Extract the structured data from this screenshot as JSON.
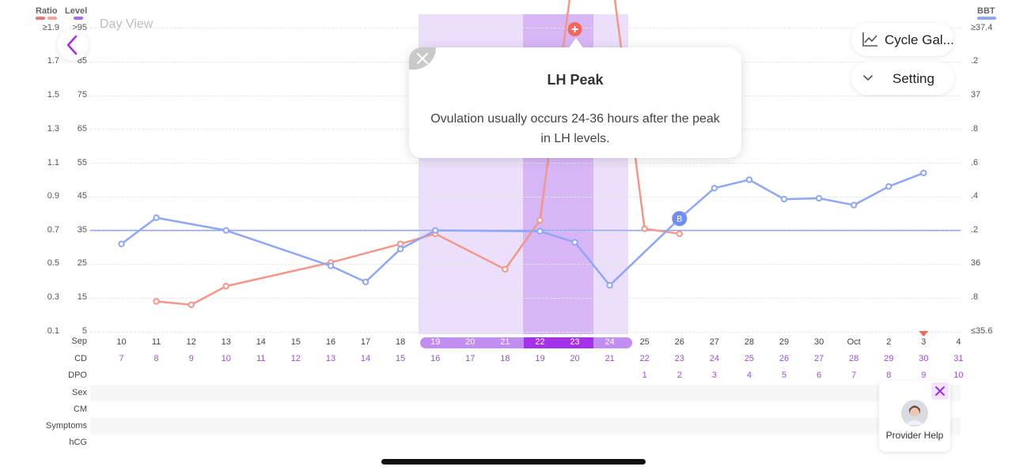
{
  "header": {
    "left_labels": [
      "Ratio",
      "Level"
    ],
    "right_label": "BBT",
    "ratio_color": "#e07b73",
    "level_color_1": "#f2a49a",
    "level_color_2": "#a46be8",
    "bbt_color": "#8fa7f4",
    "view_title": "Day View"
  },
  "axes": {
    "ratio_ticks": [
      "≥1.9",
      "1.7",
      "1.5",
      "1.3",
      "1.1",
      "0.9",
      "0.7",
      "0.5",
      "0.3",
      "0.1"
    ],
    "level_ticks": [
      ">95",
      "85",
      "75",
      "65",
      "55",
      "45",
      "35",
      "25",
      "15",
      "5"
    ],
    "bbt_ticks": [
      "≥37.4",
      ".2",
      "37",
      ".8",
      ".6",
      ".4",
      ".2",
      "36",
      ".8",
      "≤35.6"
    ]
  },
  "rows": {
    "labels": [
      "Sep",
      "CD",
      "DPO",
      "Sex",
      "CM",
      "Symptoms",
      "hCG"
    ],
    "dates": [
      "10",
      "11",
      "12",
      "13",
      "14",
      "15",
      "16",
      "17",
      "18",
      "19",
      "20",
      "21",
      "22",
      "23",
      "24",
      "25",
      "26",
      "27",
      "28",
      "29",
      "30",
      "Oct",
      "2",
      "3",
      "4"
    ],
    "cd": [
      "7",
      "8",
      "9",
      "10",
      "11",
      "12",
      "13",
      "14",
      "15",
      "16",
      "17",
      "18",
      "19",
      "20",
      "21",
      "22",
      "23",
      "24",
      "25",
      "26",
      "27",
      "28",
      "29",
      "30",
      "31"
    ],
    "dpo": [
      "",
      "",
      "",
      "",
      "",
      "",
      "",
      "",
      "",
      "",
      "",
      "",
      "",
      "",
      "",
      "1",
      "2",
      "3",
      "4",
      "5",
      "6",
      "7",
      "8",
      "9",
      "10"
    ]
  },
  "chart_data": {
    "type": "line",
    "x": [
      "Sep 10",
      "Sep 11",
      "Sep 12",
      "Sep 13",
      "Sep 14",
      "Sep 15",
      "Sep 16",
      "Sep 17",
      "Sep 18",
      "Sep 19",
      "Sep 20",
      "Sep 21",
      "Sep 22",
      "Sep 23",
      "Sep 24",
      "Sep 25",
      "Sep 26",
      "Sep 27",
      "Sep 28",
      "Sep 29",
      "Sep 30",
      "Oct 1",
      "Oct 2",
      "Oct 3",
      "Oct 4"
    ],
    "series": [
      {
        "name": "Level",
        "color": "#f2978a",
        "axis": "level",
        "values": [
          null,
          14,
          13,
          18.5,
          null,
          null,
          25.5,
          null,
          31,
          34,
          null,
          23.5,
          38,
          115,
          115,
          35.5,
          34,
          null,
          null,
          null,
          null,
          null,
          null,
          null,
          null
        ]
      },
      {
        "name": "BBT",
        "color": "#8fa7f4",
        "axis": "bbt",
        "values": [
          36.12,
          36.275,
          null,
          36.2,
          null,
          null,
          35.99,
          35.895,
          36.09,
          36.2,
          null,
          null,
          36.195,
          36.13,
          35.875,
          null,
          36.27,
          36.45,
          36.5,
          36.385,
          36.39,
          36.35,
          36.46,
          36.54,
          null
        ]
      }
    ],
    "coverline_bbt": 36.2,
    "level_range": [
      5,
      95
    ],
    "bbt_range": [
      35.6,
      37.4
    ],
    "highlight": {
      "fertile_dates": [
        "Sep 19",
        "Sep 20",
        "Sep 21",
        "Sep 22",
        "Sep 23",
        "Sep 24"
      ],
      "peak_dates": [
        "Sep 22",
        "Sep 23"
      ],
      "peak_marker_date": "Sep 23"
    },
    "badge": {
      "date": "Sep 26",
      "text": "B"
    },
    "today_marker_date": "Oct 3"
  },
  "tooltip": {
    "title": "LH Peak",
    "body": "Ovulation usually occurs 24-36 hours after the peak in LH levels."
  },
  "buttons": {
    "cycle_gallery": "Cycle Gal...",
    "setting": "Setting",
    "provider_help": "Provider Help"
  },
  "icons": {
    "back": "chevron-left-icon",
    "chart": "line-chart-icon",
    "chevron": "chevron-down-icon",
    "close": "close-icon",
    "peak": "plus-circle-icon"
  }
}
